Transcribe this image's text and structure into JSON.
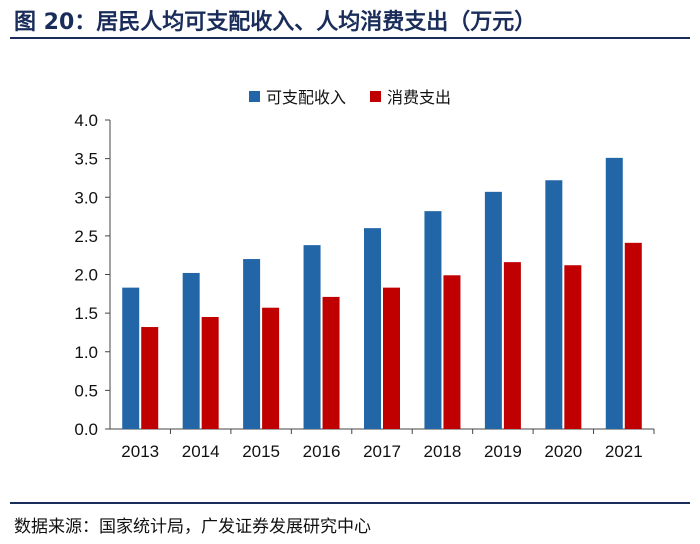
{
  "figure": {
    "title": "图 20：居民人均可支配收入、人均消费支出（万元）",
    "source": "数据来源：国家统计局，广发证券发展研究中心"
  },
  "chart_data": {
    "type": "bar",
    "categories": [
      "2013",
      "2014",
      "2015",
      "2016",
      "2017",
      "2018",
      "2019",
      "2020",
      "2021"
    ],
    "series": [
      {
        "name": "可支配收入",
        "color": "#2266a8",
        "values": [
          1.83,
          2.02,
          2.2,
          2.38,
          2.6,
          2.82,
          3.07,
          3.22,
          3.51
        ]
      },
      {
        "name": "消费支出",
        "color": "#c00000",
        "values": [
          1.32,
          1.45,
          1.57,
          1.71,
          1.83,
          1.99,
          2.16,
          2.12,
          2.41
        ]
      }
    ],
    "ylim": [
      0,
      4.0
    ],
    "yticks": [
      "0.0",
      "0.5",
      "1.0",
      "1.5",
      "2.0",
      "2.5",
      "3.0",
      "3.5",
      "4.0"
    ],
    "grid": false,
    "legend_position": "top-center"
  }
}
